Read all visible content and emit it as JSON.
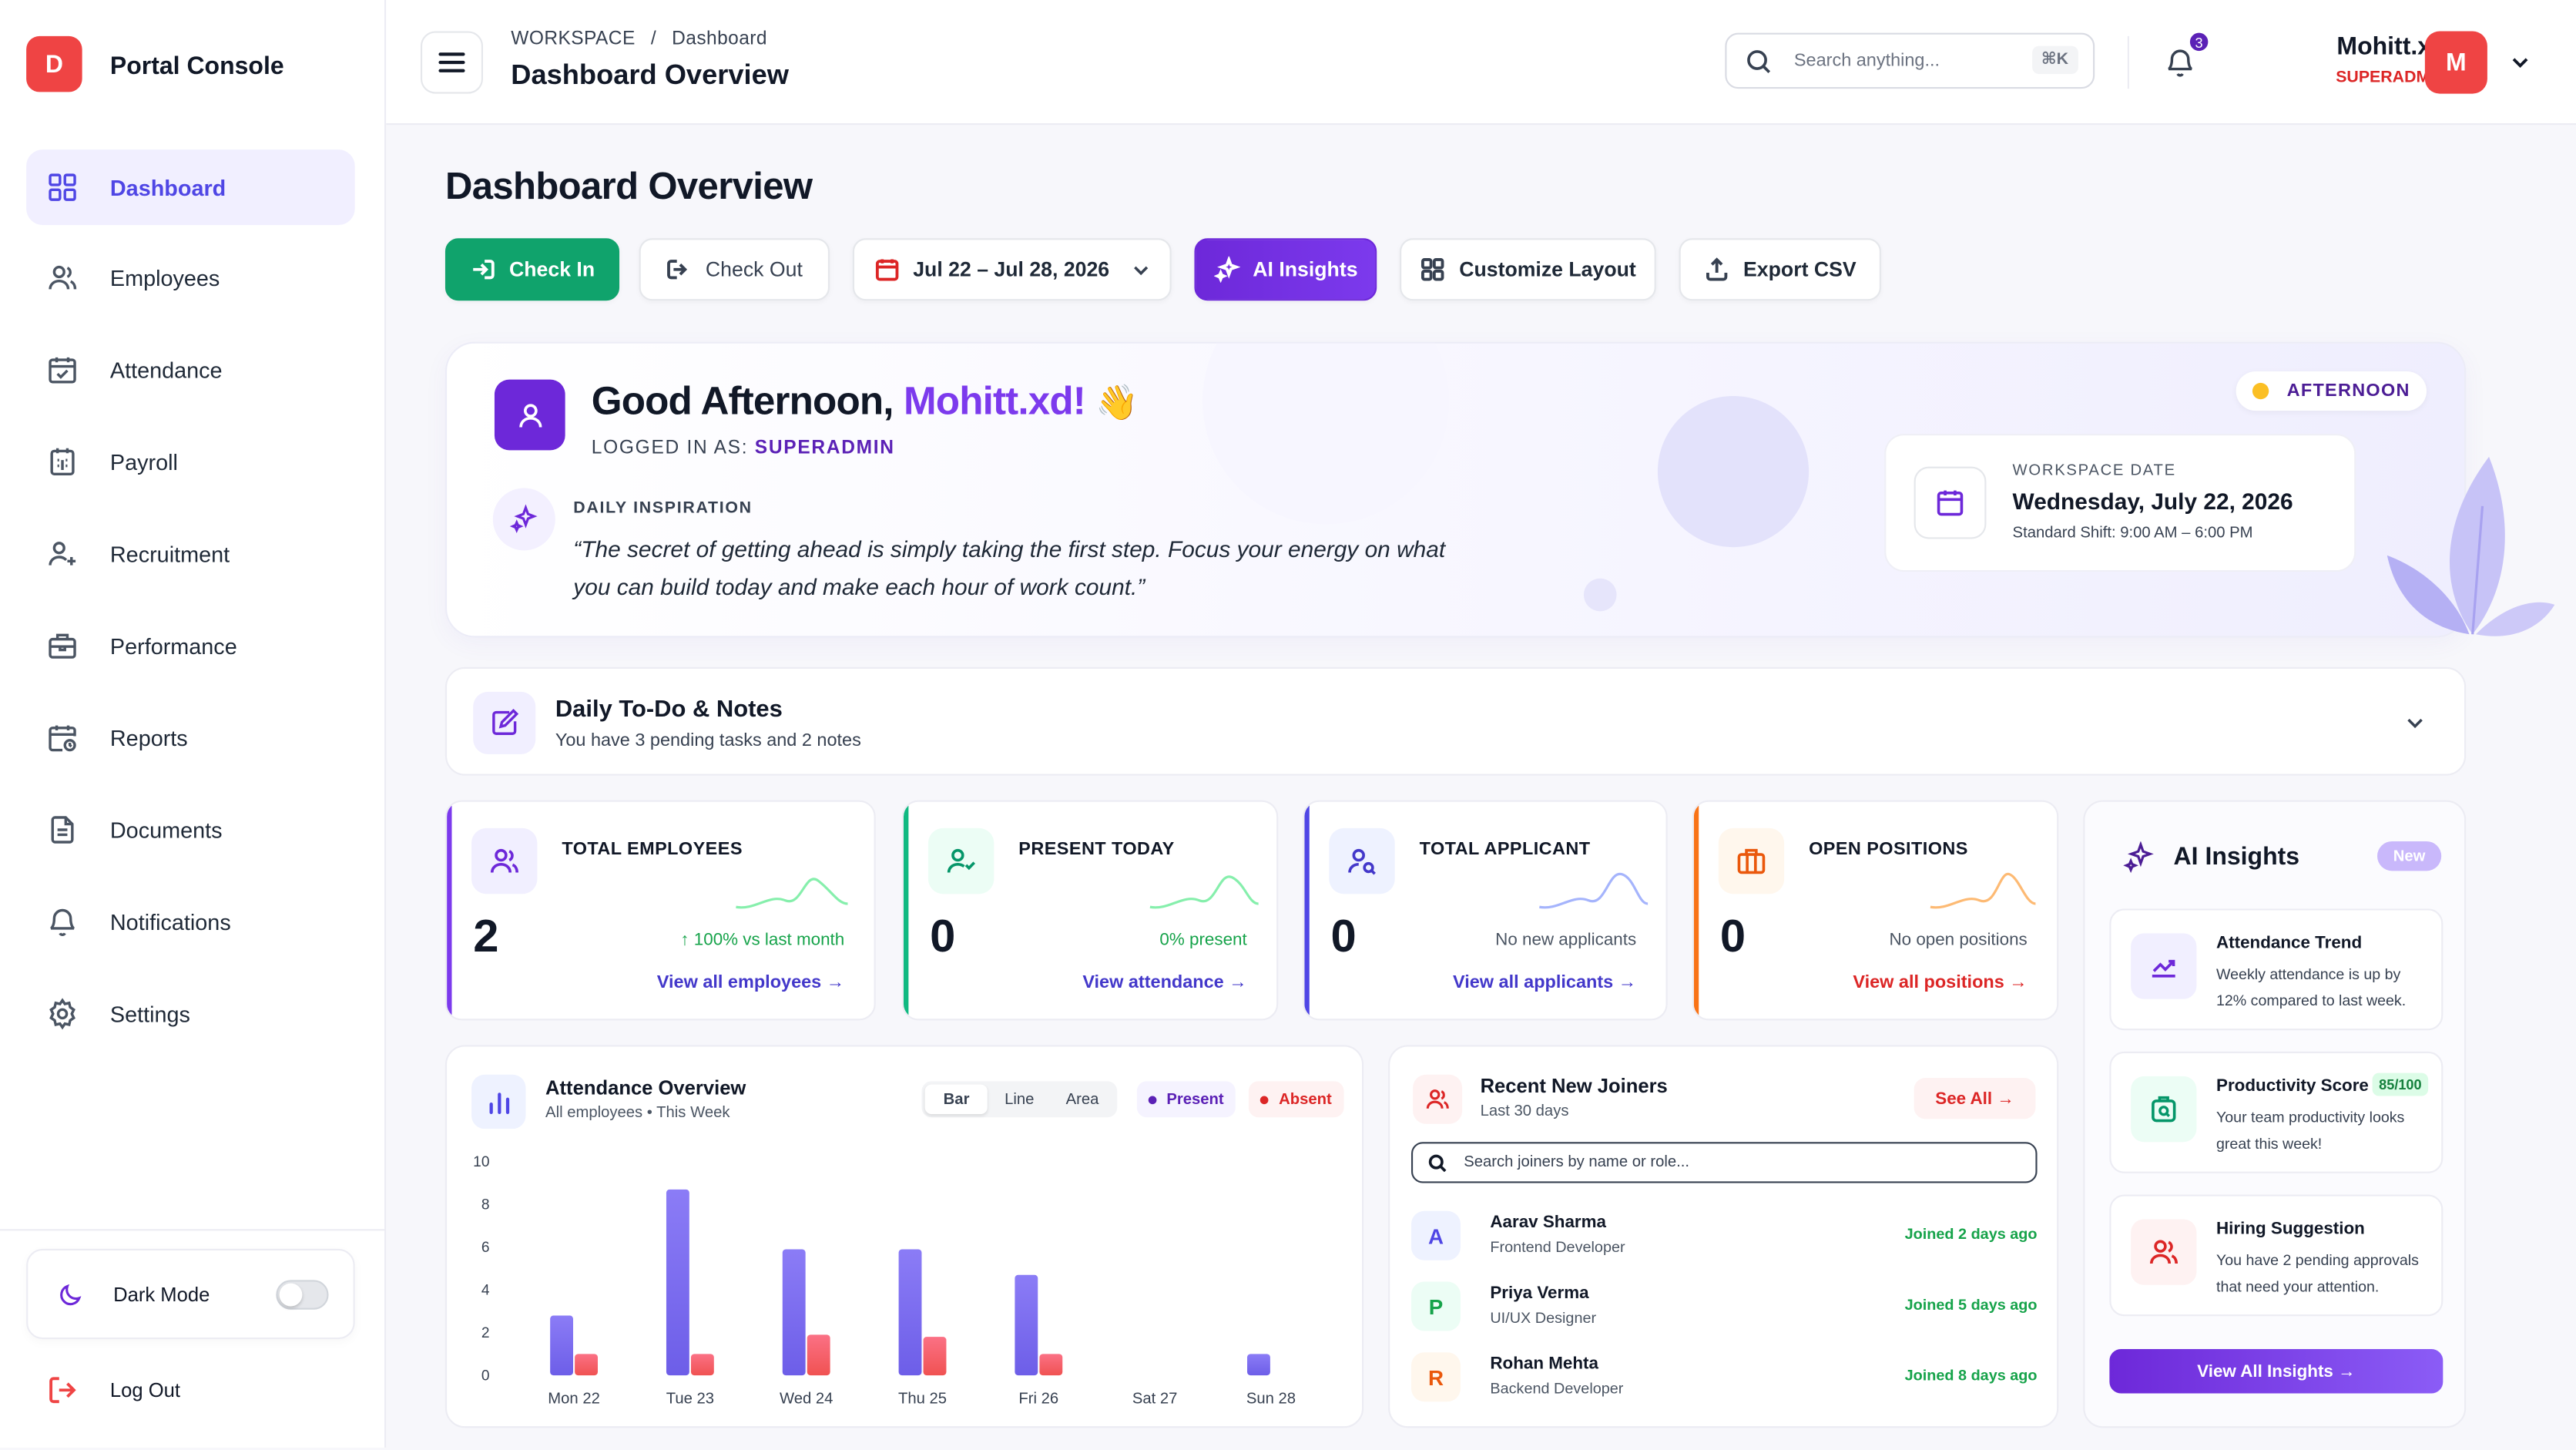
{
  "sidebar": {
    "logo_letter": "D",
    "brand": "Portal Console",
    "items": [
      {
        "label": "Dashboard",
        "icon": "grid-icon",
        "active": true
      },
      {
        "label": "Employees",
        "icon": "users-icon"
      },
      {
        "label": "Attendance",
        "icon": "calendar-check-icon"
      },
      {
        "label": "Payroll",
        "icon": "calculator-icon"
      },
      {
        "label": "Recruitment",
        "icon": "user-add-icon"
      },
      {
        "label": "Performance",
        "icon": "briefcase-icon"
      },
      {
        "label": "Reports",
        "icon": "calendar-clock-icon"
      },
      {
        "label": "Documents",
        "icon": "document-icon"
      },
      {
        "label": "Notifications",
        "icon": "bell-icon"
      },
      {
        "label": "Settings",
        "icon": "gear-icon"
      }
    ],
    "dark_mode_label": "Dark Mode",
    "dark_mode_on": false,
    "logout_label": "Log Out"
  },
  "topbar": {
    "crumb_root": "WORKSPACE",
    "crumb_sep": "/",
    "crumb_page": "Dashboard",
    "title": "Dashboard Overview",
    "search_placeholder": "Search anything...",
    "search_shortcut": "⌘K",
    "notif_count": "3",
    "user_name": "Mohitt.xd",
    "user_role": "SUPERADMIN",
    "avatar_letter": "M"
  },
  "page_title": "Dashboard Overview",
  "actions": {
    "check_in": "Check In",
    "check_out": "Check Out",
    "date_range": "Jul 22 – Jul 28, 2026",
    "ai_insights": "AI Insights",
    "customize": "Customize Layout",
    "export": "Export CSV"
  },
  "hero": {
    "greeting": "Good Afternoon, ",
    "name": "Mohitt.xd!",
    "emoji": "👋",
    "logged_prefix": "LOGGED IN AS: ",
    "logged_role": "SUPERADMIN",
    "inspiration_label": "DAILY INSPIRATION",
    "quote": "“The secret of getting ahead is simply taking the first step. Focus your energy on what you can build today and make each hour of work count.”",
    "period_badge": "AFTERNOON",
    "date_label": "WORKSPACE DATE",
    "date_value": "Wednesday, July 22, 2026",
    "shift": "Standard Shift: 9:00 AM – 6:00 PM"
  },
  "todo": {
    "title": "Daily To-Do & Notes",
    "subtitle": "You have 3 pending tasks and 2 notes"
  },
  "stats": [
    {
      "label": "TOTAL EMPLOYEES",
      "value": "2",
      "sub": "↑ 100% vs last month",
      "link": "View all employees →",
      "accent": "#7c3aed",
      "sub_color": "#16a34a",
      "link_color": "#4338ca",
      "spark_color": "#86efac"
    },
    {
      "label": "PRESENT TODAY",
      "value": "0",
      "sub": "0% present",
      "link": "View attendance →",
      "accent": "#10b981",
      "sub_color": "#16a34a",
      "link_color": "#4338ca",
      "spark_color": "#86efac"
    },
    {
      "label": "TOTAL APPLICANT",
      "value": "0",
      "sub": "No new applicants",
      "link": "View all applicants →",
      "accent": "#4f46e5",
      "sub_color": "#4b5563",
      "link_color": "#4338ca",
      "spark_color": "#a5b4fc"
    },
    {
      "label": "OPEN POSITIONS",
      "value": "0",
      "sub": "No open positions",
      "link": "View all positions →",
      "accent": "#f97316",
      "sub_color": "#4b5563",
      "link_color": "#dc2626",
      "spark_color": "#fdba74"
    }
  ],
  "ai_panel": {
    "title": "AI Insights",
    "badge": "New",
    "cards": [
      {
        "title": "Attendance Trend",
        "desc": "Weekly attendance is up by 12% compared to last week.",
        "icon": "trend-up-icon"
      },
      {
        "title": "Productivity Score",
        "score": "85/100",
        "desc": "Your team productivity looks great this week!",
        "icon": "productivity-icon"
      },
      {
        "title": "Hiring Suggestion",
        "desc": "You have 2 pending approvals that need your attention.",
        "icon": "users-icon"
      }
    ],
    "button": "View All Insights →"
  },
  "attendance": {
    "title": "Attendance Overview",
    "subtitle": "All employees • This Week",
    "views": [
      "Bar",
      "Line",
      "Area"
    ],
    "active_view": "Bar",
    "legend_present": "Present",
    "legend_absent": "Absent"
  },
  "chart_data": {
    "type": "bar",
    "categories": [
      "Mon 22",
      "Tue 23",
      "Wed 24",
      "Thu 25",
      "Fri 26",
      "Sat 27",
      "Sun 28"
    ],
    "series": [
      {
        "name": "Present",
        "values": [
          2.8,
          8.7,
          5.9,
          5.9,
          4.7,
          0,
          1
        ],
        "color": "#7c6cf0"
      },
      {
        "name": "Absent",
        "values": [
          1,
          1,
          1.9,
          1.8,
          1,
          0,
          0
        ],
        "color": "#f87171"
      }
    ],
    "ylim": [
      0,
      10
    ],
    "yticks": [
      0,
      2,
      4,
      6,
      8,
      10
    ],
    "grid": false,
    "legend": "top-right"
  },
  "joiners": {
    "title": "Recent New Joiners",
    "subtitle": "Last 30 days",
    "see_all": "See All →",
    "search_placeholder": "Search joiners by name or role...",
    "rows": [
      {
        "initial": "A",
        "name": "Aarav Sharma",
        "role": "Frontend Developer",
        "when": "Joined 2 days ago",
        "bg": "#eef2ff",
        "fg": "#4f46e5"
      },
      {
        "initial": "P",
        "name": "Priya Verma",
        "role": "UI/UX Designer",
        "when": "Joined 5 days ago",
        "bg": "#ecfdf5",
        "fg": "#16a34a"
      },
      {
        "initial": "R",
        "name": "Rohan Mehta",
        "role": "Backend Developer",
        "when": "Joined 8 days ago",
        "bg": "#fff7ed",
        "fg": "#ea580c"
      }
    ]
  }
}
